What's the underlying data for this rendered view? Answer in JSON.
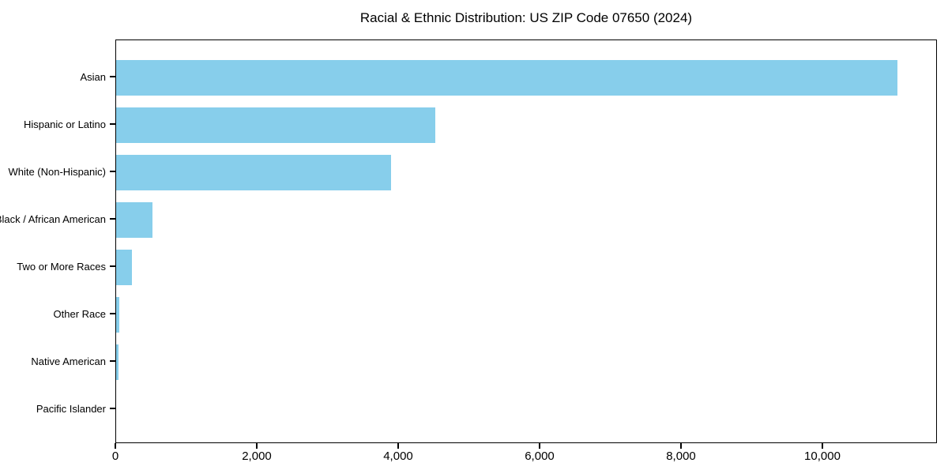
{
  "chart_data": {
    "type": "bar",
    "orientation": "horizontal",
    "title": "Racial & Ethnic Distribution: US ZIP Code 07650 (2024)",
    "categories": [
      "Asian",
      "Hispanic or Latino",
      "White (Non-Hispanic)",
      "Black / African American",
      "Two or More Races",
      "Other Race",
      "Native American",
      "Pacific Islander"
    ],
    "values": [
      11050,
      4510,
      3890,
      515,
      225,
      45,
      30,
      0
    ],
    "bar_color": "#87CEEB",
    "axis_color": "#000000",
    "xlabel": "",
    "ylabel": "",
    "xlim": [
      0,
      11620
    ],
    "x_ticks": [
      0,
      2000,
      4000,
      6000,
      8000,
      10000
    ],
    "x_tick_labels": [
      "0",
      "2,000",
      "4,000",
      "6,000",
      "8,000",
      "10,000"
    ],
    "grid": false,
    "legend": null
  }
}
